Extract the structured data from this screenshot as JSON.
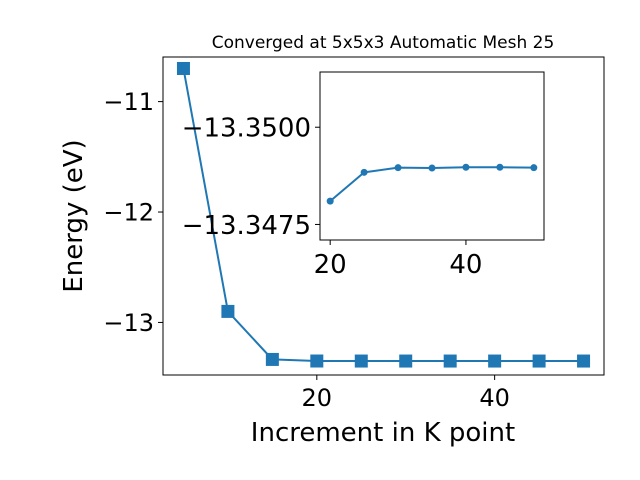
{
  "chart_data": [
    {
      "type": "line",
      "title": "Converged at 5x5x3 Automatic Mesh 25",
      "xlabel": "Increment in K point",
      "ylabel": "Energy (eV)",
      "marker": "square",
      "color": "#1f77b4",
      "xlim": [
        2.7,
        52.3
      ],
      "ylim": [
        -13.476,
        -10.596
      ],
      "xticks": [
        20,
        40
      ],
      "yticks": [
        -11,
        -12,
        -13
      ],
      "x": [
        5,
        10,
        15,
        20,
        25,
        30,
        35,
        40,
        45,
        50
      ],
      "y": [
        -10.7,
        -12.9,
        -13.335,
        -13.3493,
        -13.3496,
        -13.3496,
        -13.3496,
        -13.3496,
        -13.3496,
        -13.3496
      ]
    },
    {
      "type": "line",
      "title": "",
      "xlabel": "",
      "ylabel": "",
      "marker": "circle",
      "color": "#1f77b4",
      "xlim": [
        18.5,
        51.5
      ],
      "ylim": [
        -13.3471,
        -13.35142
      ],
      "xticks": [
        20,
        40
      ],
      "yticks": [
        -13.35,
        -13.3475
      ],
      "ytick_labels": [
        "−13.3500",
        "−13.3475"
      ],
      "x": [
        20,
        25,
        30,
        35,
        40,
        45,
        50
      ],
      "y": [
        -13.3481,
        -13.34884,
        -13.34896,
        -13.34895,
        -13.34897,
        -13.34897,
        -13.34896
      ]
    }
  ]
}
